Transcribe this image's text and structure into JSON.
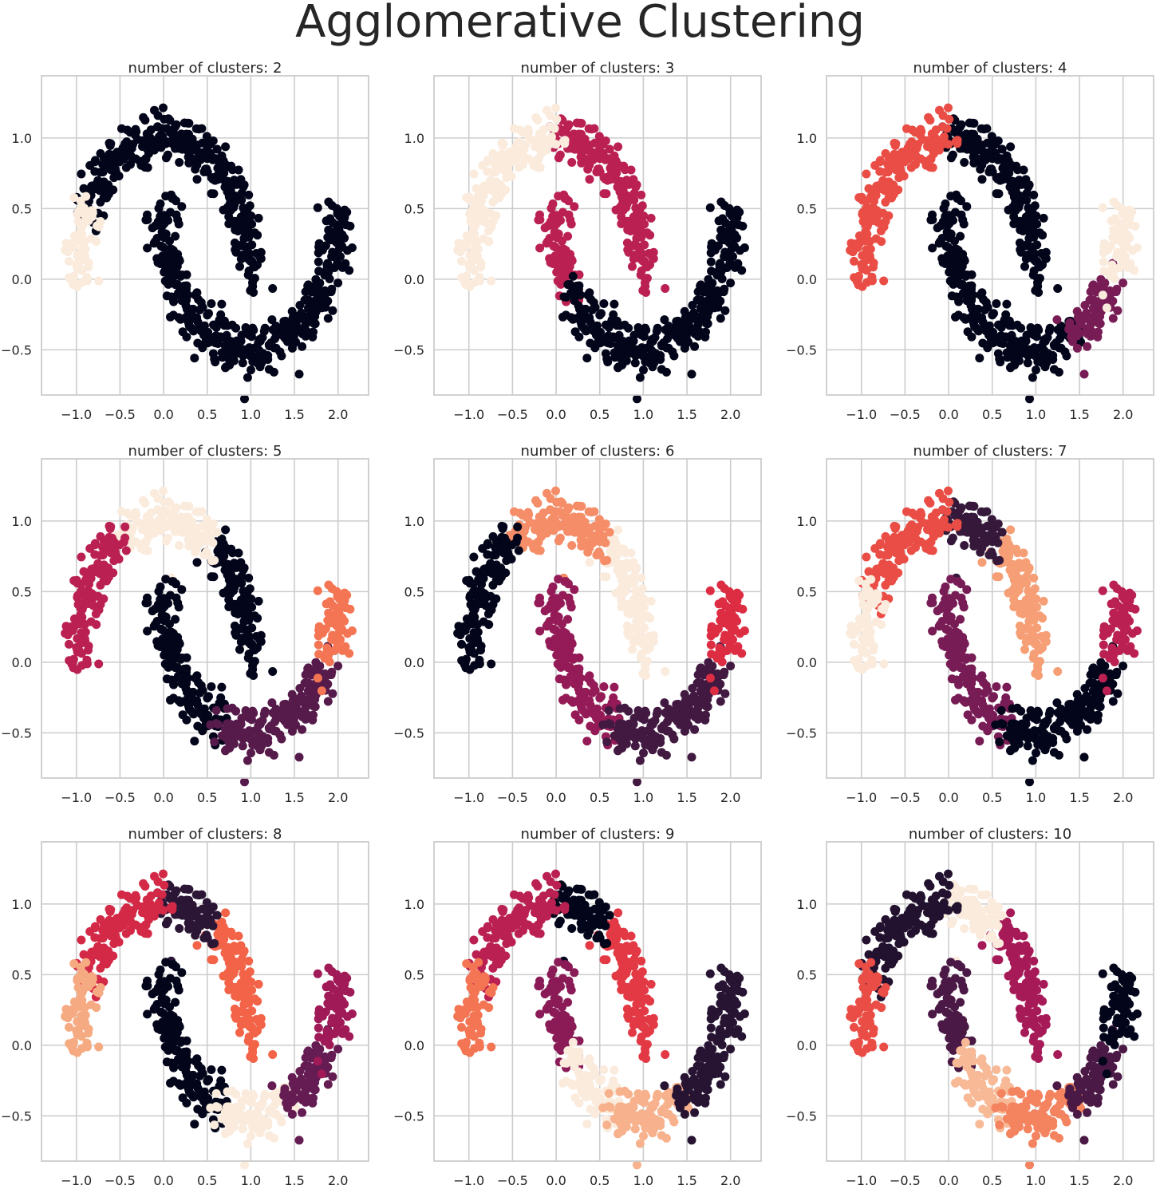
{
  "figure": {
    "title": "Agglomerative Clustering"
  },
  "chart_data": [
    {
      "type": "scatter",
      "title": "number of clusters: 2",
      "n_clusters": 2,
      "xticks": [
        "−1.0",
        "−0.5",
        "0.0",
        "0.5",
        "1.0",
        "1.5",
        "2.0"
      ],
      "yticks": [
        "−0.5",
        "0.0",
        "0.5",
        "1.0"
      ],
      "xlim": [
        -1.4,
        2.35
      ],
      "ylim": [
        -0.82,
        1.44
      ],
      "grid": true,
      "color_by_group": {
        "A": 1,
        "B": 0,
        "C": 0,
        "D": 0,
        "E": 0,
        "F": 0,
        "G": 0,
        "H": 0,
        "I": 0,
        "J": 0
      }
    },
    {
      "type": "scatter",
      "title": "number of clusters: 3",
      "n_clusters": 3,
      "xticks": [
        "−1.0",
        "−0.5",
        "0.0",
        "0.5",
        "1.0",
        "1.5",
        "2.0"
      ],
      "yticks": [
        "−0.5",
        "0.0",
        "0.5",
        "1.0"
      ],
      "xlim": [
        -1.4,
        2.35
      ],
      "ylim": [
        -0.82,
        1.44
      ],
      "grid": true,
      "color_by_group": {
        "A": 2,
        "B": 2,
        "C": 2,
        "D": 1,
        "E": 1,
        "F": 1,
        "G": 0,
        "H": 0,
        "I": 0,
        "J": 0
      }
    },
    {
      "type": "scatter",
      "title": "number of clusters: 4",
      "n_clusters": 4,
      "xticks": [
        "−1.0",
        "−0.5",
        "0.0",
        "0.5",
        "1.0",
        "1.5",
        "2.0"
      ],
      "yticks": [
        "−0.5",
        "0.0",
        "0.5",
        "1.0"
      ],
      "xlim": [
        -1.4,
        2.35
      ],
      "ylim": [
        -0.82,
        1.44
      ],
      "grid": true,
      "color_by_group": {
        "A": 2,
        "B": 2,
        "C": 2,
        "D": 0,
        "E": 0,
        "F": 0,
        "G": 0,
        "H": 0,
        "I": 1,
        "J": 3
      }
    },
    {
      "type": "scatter",
      "title": "number of clusters: 5",
      "n_clusters": 5,
      "xticks": [
        "−1.0",
        "−0.5",
        "0.0",
        "0.5",
        "1.0",
        "1.5",
        "2.0"
      ],
      "yticks": [
        "−0.5",
        "0.0",
        "0.5",
        "1.0"
      ],
      "xlim": [
        -1.4,
        2.35
      ],
      "ylim": [
        -0.82,
        1.44
      ],
      "grid": true,
      "color_by_group": {
        "A": 2,
        "B": 2,
        "C": 4,
        "D": 4,
        "E": 0,
        "F": 0,
        "G": 0,
        "H": 1,
        "I": 1,
        "J": 3
      }
    },
    {
      "type": "scatter",
      "title": "number of clusters: 6",
      "n_clusters": 6,
      "xticks": [
        "−1.0",
        "−0.5",
        "0.0",
        "0.5",
        "1.0",
        "1.5",
        "2.0"
      ],
      "yticks": [
        "−0.5",
        "0.0",
        "0.5",
        "1.0"
      ],
      "xlim": [
        -1.4,
        2.35
      ],
      "ylim": [
        -0.82,
        1.44
      ],
      "grid": true,
      "color_by_group": {
        "A": 0,
        "B": 0,
        "C": 4,
        "D": 4,
        "E": 5,
        "F": 2,
        "G": 2,
        "H": 1,
        "I": 1,
        "J": 3
      }
    },
    {
      "type": "scatter",
      "title": "number of clusters: 7",
      "n_clusters": 7,
      "xticks": [
        "−1.0",
        "−0.5",
        "0.0",
        "0.5",
        "1.0",
        "1.5",
        "2.0"
      ],
      "yticks": [
        "−0.5",
        "0.0",
        "0.5",
        "1.0"
      ],
      "xlim": [
        -1.4,
        2.35
      ],
      "ylim": [
        -0.82,
        1.44
      ],
      "grid": true,
      "color_by_group": {
        "A": 6,
        "B": 4,
        "C": 4,
        "D": 1,
        "E": 5,
        "F": 2,
        "G": 2,
        "H": 0,
        "I": 0,
        "J": 3
      }
    },
    {
      "type": "scatter",
      "title": "number of clusters: 8",
      "n_clusters": 8,
      "xticks": [
        "−1.0",
        "−0.5",
        "0.0",
        "0.5",
        "1.0",
        "1.5",
        "2.0"
      ],
      "yticks": [
        "−0.5",
        "0.0",
        "0.5",
        "1.0"
      ],
      "xlim": [
        -1.4,
        2.35
      ],
      "ylim": [
        -0.82,
        1.44
      ],
      "grid": true,
      "color_by_group": {
        "A": 6,
        "B": 4,
        "C": 4,
        "D": 1,
        "E": 5,
        "F": 0,
        "G": 0,
        "H": 7,
        "I": 2,
        "J": 3
      }
    },
    {
      "type": "scatter",
      "title": "number of clusters: 9",
      "n_clusters": 9,
      "xticks": [
        "−1.0",
        "−0.5",
        "0.0",
        "0.5",
        "1.0",
        "1.5",
        "2.0"
      ],
      "yticks": [
        "−0.5",
        "0.0",
        "0.5",
        "1.0"
      ],
      "xlim": [
        -1.4,
        2.35
      ],
      "ylim": [
        -0.82,
        1.44
      ],
      "grid": true,
      "color_by_group": {
        "A": 6,
        "B": 4,
        "C": 4,
        "D": 0,
        "E": 5,
        "F": 3,
        "G": 8,
        "H": 7,
        "I": 1,
        "J": 1
      }
    },
    {
      "type": "scatter",
      "title": "number of clusters: 10",
      "n_clusters": 10,
      "xticks": [
        "−1.0",
        "−0.5",
        "0.0",
        "0.5",
        "1.0",
        "1.5",
        "2.0"
      ],
      "yticks": [
        "−0.5",
        "0.0",
        "0.5",
        "1.0"
      ],
      "xlim": [
        -1.4,
        2.35
      ],
      "ylim": [
        -0.82,
        1.44
      ],
      "grid": true,
      "color_by_group": {
        "A": 6,
        "B": 1,
        "C": 1,
        "D": 9,
        "E": 4,
        "F": 2,
        "G": 8,
        "H": 7,
        "I": 2,
        "J": 0
      }
    }
  ]
}
